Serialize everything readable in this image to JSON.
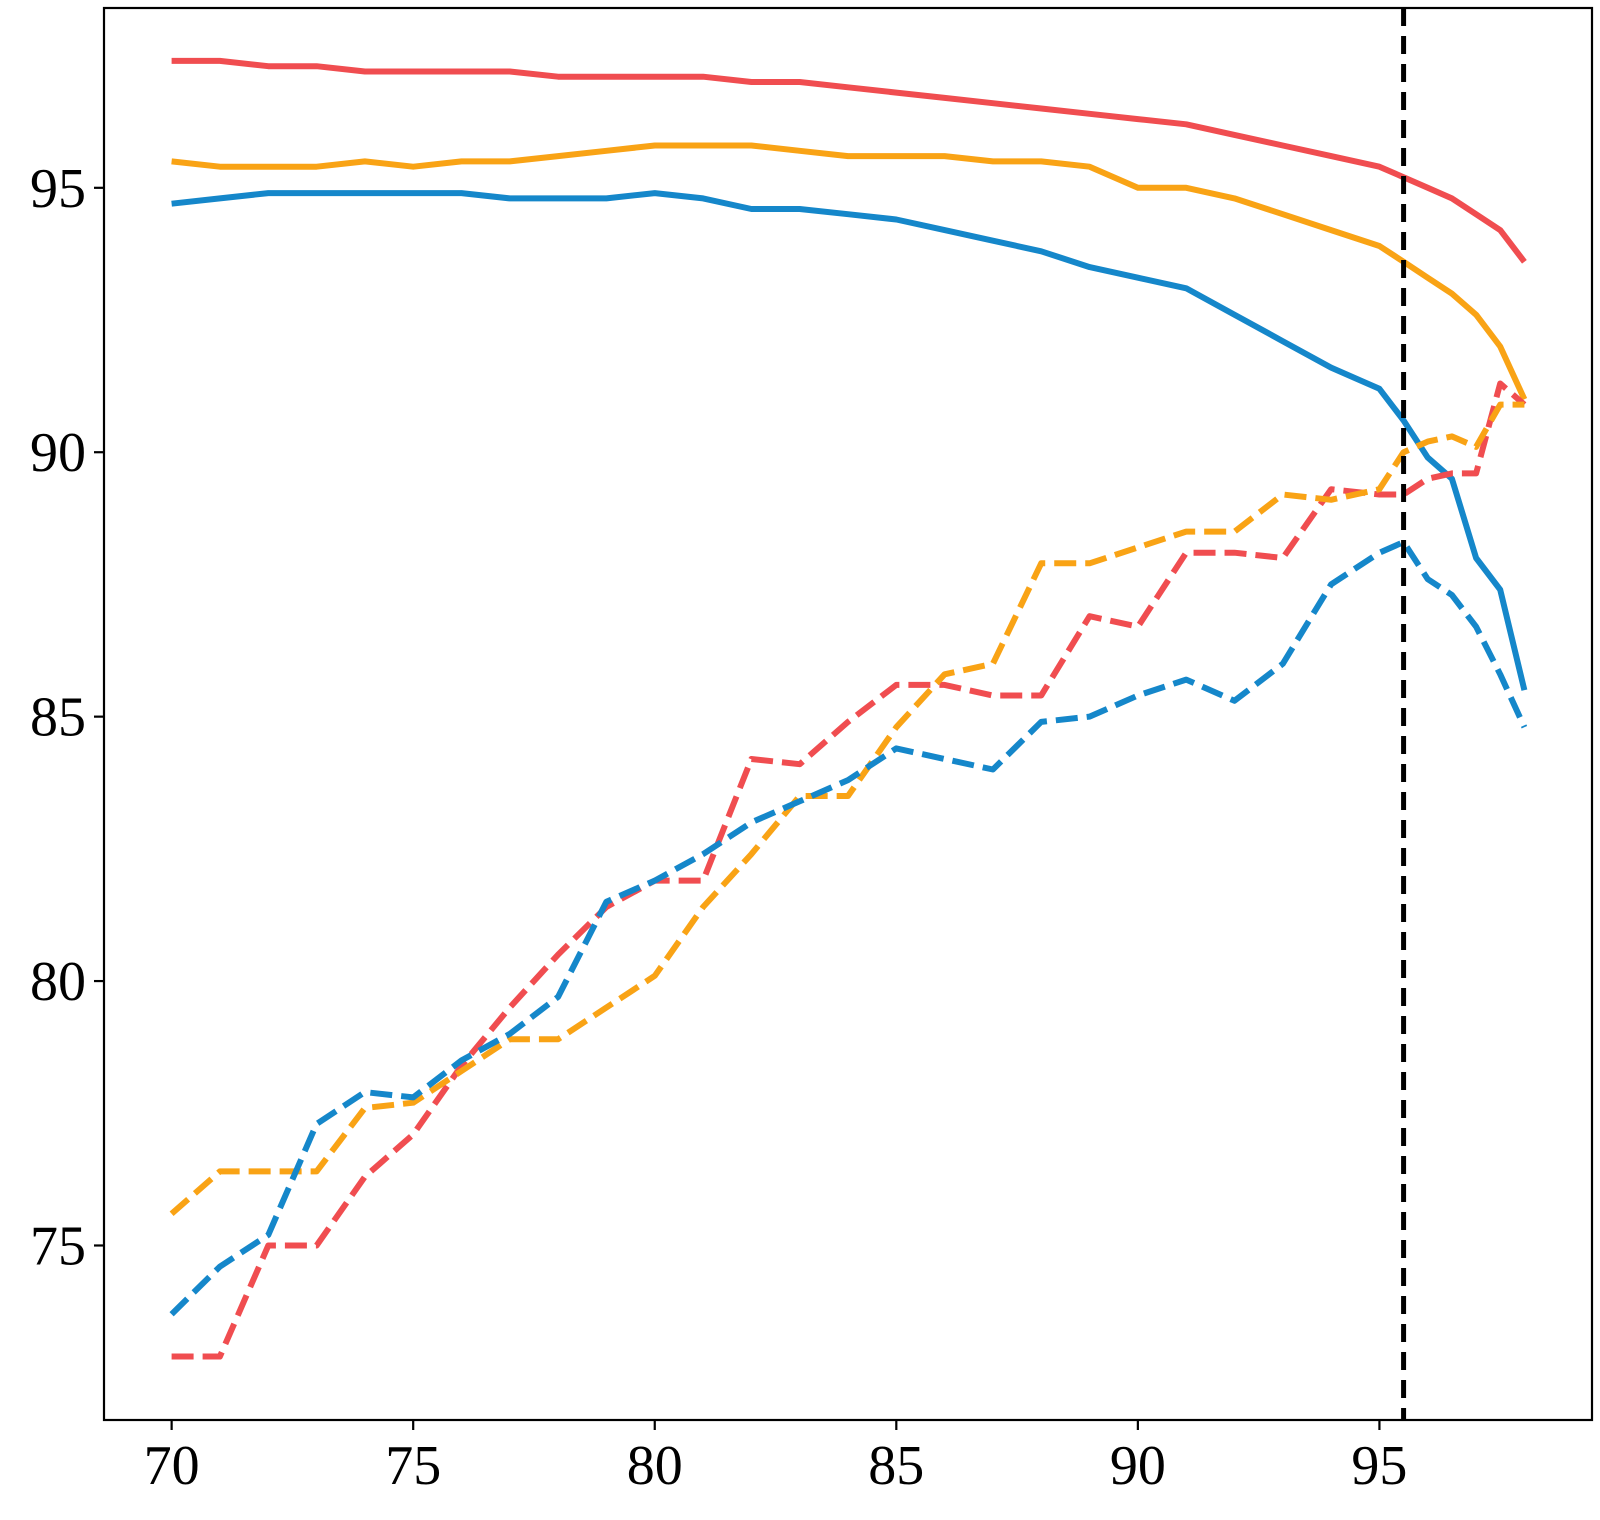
{
  "chart_data": {
    "type": "line",
    "title": "",
    "xlabel": "",
    "ylabel": "",
    "xlim": [
      68.6,
      99.4
    ],
    "ylim": [
      71.7,
      98.4
    ],
    "xticks": [
      70,
      75,
      80,
      85,
      90,
      95
    ],
    "yticks": [
      75,
      80,
      85,
      90,
      95
    ],
    "grid": false,
    "legend": "none",
    "x": [
      70,
      71,
      72,
      73,
      74,
      75,
      76,
      77,
      78,
      79,
      80,
      81,
      82,
      83,
      84,
      85,
      86,
      87,
      88,
      89,
      90,
      91,
      92,
      93,
      94,
      95,
      95.5,
      96,
      96.5,
      97,
      97.5,
      98
    ],
    "reference_line": {
      "x": 95.5,
      "style": "dashed",
      "color": "#000000"
    },
    "series": [
      {
        "color": "#f04d50",
        "style": "solid",
        "values": [
          97.4,
          97.4,
          97.3,
          97.3,
          97.2,
          97.2,
          97.2,
          97.2,
          97.1,
          97.1,
          97.1,
          97.1,
          97.0,
          97.0,
          96.9,
          96.8,
          96.7,
          96.6,
          96.5,
          96.4,
          96.3,
          96.2,
          96.0,
          95.8,
          95.6,
          95.4,
          95.2,
          95.0,
          94.8,
          94.5,
          94.2,
          93.6
        ]
      },
      {
        "color": "#f9a315",
        "style": "solid",
        "values": [
          95.5,
          95.4,
          95.4,
          95.4,
          95.5,
          95.4,
          95.5,
          95.5,
          95.6,
          95.7,
          95.8,
          95.8,
          95.8,
          95.7,
          95.6,
          95.6,
          95.6,
          95.5,
          95.5,
          95.4,
          95.0,
          95.0,
          94.8,
          94.5,
          94.2,
          93.9,
          93.6,
          93.3,
          93.0,
          92.6,
          92.0,
          91.0
        ]
      },
      {
        "color": "#1587ca",
        "style": "solid",
        "values": [
          94.7,
          94.8,
          94.9,
          94.9,
          94.9,
          94.9,
          94.9,
          94.8,
          94.8,
          94.8,
          94.9,
          94.8,
          94.6,
          94.6,
          94.5,
          94.4,
          94.2,
          94.0,
          93.8,
          93.5,
          93.3,
          93.1,
          92.6,
          92.1,
          91.6,
          91.2,
          90.6,
          89.9,
          89.5,
          88.0,
          87.4,
          85.5
        ]
      },
      {
        "color": "#f04d50",
        "style": "dashed",
        "values": [
          72.9,
          72.9,
          75.0,
          75.0,
          76.3,
          77.1,
          78.4,
          79.5,
          80.5,
          81.4,
          81.9,
          81.9,
          84.2,
          84.1,
          84.9,
          85.6,
          85.6,
          85.4,
          85.4,
          86.9,
          86.7,
          88.1,
          88.1,
          88.0,
          89.3,
          89.2,
          89.2,
          89.5,
          89.6,
          89.6,
          91.3,
          90.9
        ]
      },
      {
        "color": "#f9a315",
        "style": "dashed",
        "values": [
          75.6,
          76.4,
          76.4,
          76.4,
          77.6,
          77.7,
          78.3,
          78.9,
          78.9,
          79.5,
          80.1,
          81.4,
          82.4,
          83.5,
          83.5,
          84.8,
          85.8,
          86.0,
          87.9,
          87.9,
          88.2,
          88.5,
          88.5,
          89.2,
          89.1,
          89.3,
          90.0,
          90.2,
          90.3,
          90.1,
          90.9,
          90.9
        ]
      },
      {
        "color": "#1587ca",
        "style": "dashed",
        "values": [
          73.7,
          74.6,
          75.2,
          77.3,
          77.9,
          77.8,
          78.5,
          79.0,
          79.7,
          81.5,
          81.9,
          82.4,
          83.0,
          83.4,
          83.8,
          84.4,
          84.2,
          84.0,
          84.9,
          85.0,
          85.4,
          85.7,
          85.3,
          86.0,
          87.5,
          88.1,
          88.3,
          87.6,
          87.3,
          86.7,
          85.8,
          84.8
        ]
      }
    ]
  }
}
